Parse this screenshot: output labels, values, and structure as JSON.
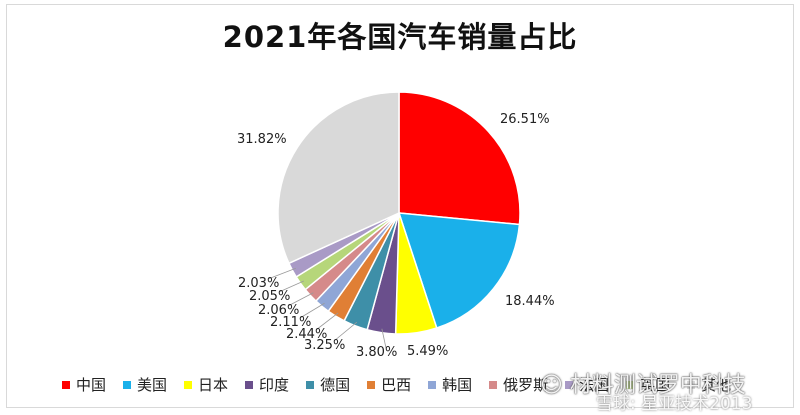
{
  "chart_data": {
    "type": "pie",
    "title": "2021年各国汽车销量占比",
    "categories": [
      "中国",
      "美国",
      "日本",
      "印度",
      "德国",
      "巴西",
      "韩国",
      "俄罗斯",
      "英国",
      "法国",
      "其他"
    ],
    "values": [
      26.51,
      18.44,
      5.49,
      3.8,
      3.25,
      2.44,
      2.11,
      2.06,
      2.05,
      2.03,
      31.82
    ],
    "value_labels": [
      "26.51%",
      "18.44%",
      "5.49%",
      "3.80%",
      "3.25%",
      "2.44%",
      "2.11%",
      "2.06%",
      "2.05%",
      "2.03%",
      "31.82%"
    ],
    "colors": [
      "#ff0000",
      "#1ab0ea",
      "#ffff00",
      "#6a4f8c",
      "#3e8fa8",
      "#e07f35",
      "#8fa6d6",
      "#d58a8a",
      "#b6d67a",
      "#a99ac6",
      "#d9d9d9"
    ],
    "legend_position": "bottom",
    "legend_visible_entries": [
      "中国",
      "美国",
      "日本",
      "印度",
      "德国",
      "巴西",
      "韩国",
      "俄罗斯",
      "法国",
      "英国",
      "其他"
    ]
  },
  "watermark": {
    "line1": "☺ 材料测试罗中科技",
    "line2": "雪球: 星亚技术2013"
  }
}
